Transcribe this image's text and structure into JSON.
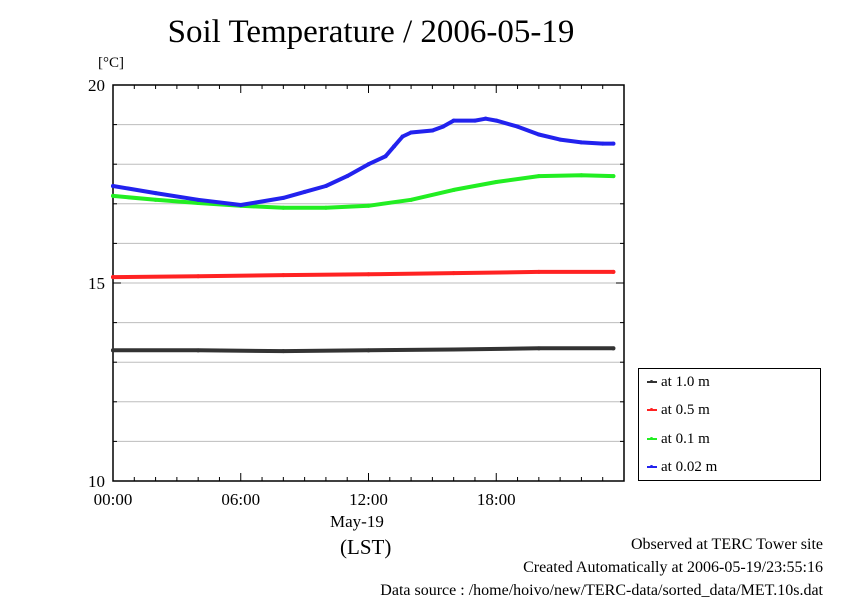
{
  "chart_data": {
    "type": "line",
    "title": "Soil Temperature / 2006-05-19",
    "ylabel": "[°C]",
    "ylim": [
      10,
      20
    ],
    "yticks": [
      "10",
      "15",
      "20"
    ],
    "xlim": [
      0,
      24
    ],
    "xticks": [
      "00:00",
      "06:00",
      "12:00",
      "18:00"
    ],
    "xdate_label": "May-19",
    "xunit_label": "(LST)",
    "grid": true,
    "legend_position": "right",
    "series": [
      {
        "name": "at 1.0 m",
        "color": "#333333",
        "x": [
          0,
          4,
          8,
          12,
          16,
          20,
          23.5
        ],
        "y": [
          13.3,
          13.3,
          13.28,
          13.3,
          13.32,
          13.35,
          13.35
        ]
      },
      {
        "name": "at 0.5 m",
        "color": "#ff2222",
        "x": [
          0,
          4,
          8,
          12,
          16,
          20,
          23.5
        ],
        "y": [
          15.15,
          15.17,
          15.2,
          15.22,
          15.25,
          15.28,
          15.28
        ]
      },
      {
        "name": "at 0.1 m",
        "color": "#22ee22",
        "x": [
          0,
          2,
          4,
          6,
          8,
          10,
          12,
          14,
          16,
          18,
          20,
          22,
          23.5
        ],
        "y": [
          17.2,
          17.1,
          17.02,
          16.95,
          16.9,
          16.9,
          16.95,
          17.1,
          17.35,
          17.55,
          17.7,
          17.72,
          17.7
        ]
      },
      {
        "name": "at 0.02 m",
        "color": "#2222ee",
        "x": [
          0,
          2,
          4,
          6,
          8,
          9,
          10,
          11,
          12,
          12.8,
          13.2,
          13.6,
          14,
          15,
          15.5,
          16,
          17,
          17.5,
          18,
          19,
          20,
          21,
          22,
          23,
          23.5
        ],
        "y": [
          17.45,
          17.27,
          17.1,
          16.97,
          17.15,
          17.3,
          17.45,
          17.7,
          18.0,
          18.2,
          18.45,
          18.7,
          18.8,
          18.85,
          18.95,
          19.1,
          19.1,
          19.15,
          19.1,
          18.95,
          18.75,
          18.62,
          18.55,
          18.52,
          18.52
        ]
      }
    ]
  },
  "footer": {
    "line1": "Observed at TERC Tower site",
    "line2": "Created Automatically at 2006-05-19/23:55:16",
    "line3": "Data source : /home/hoivo/new/TERC-data/sorted_data/MET.10s.dat"
  }
}
